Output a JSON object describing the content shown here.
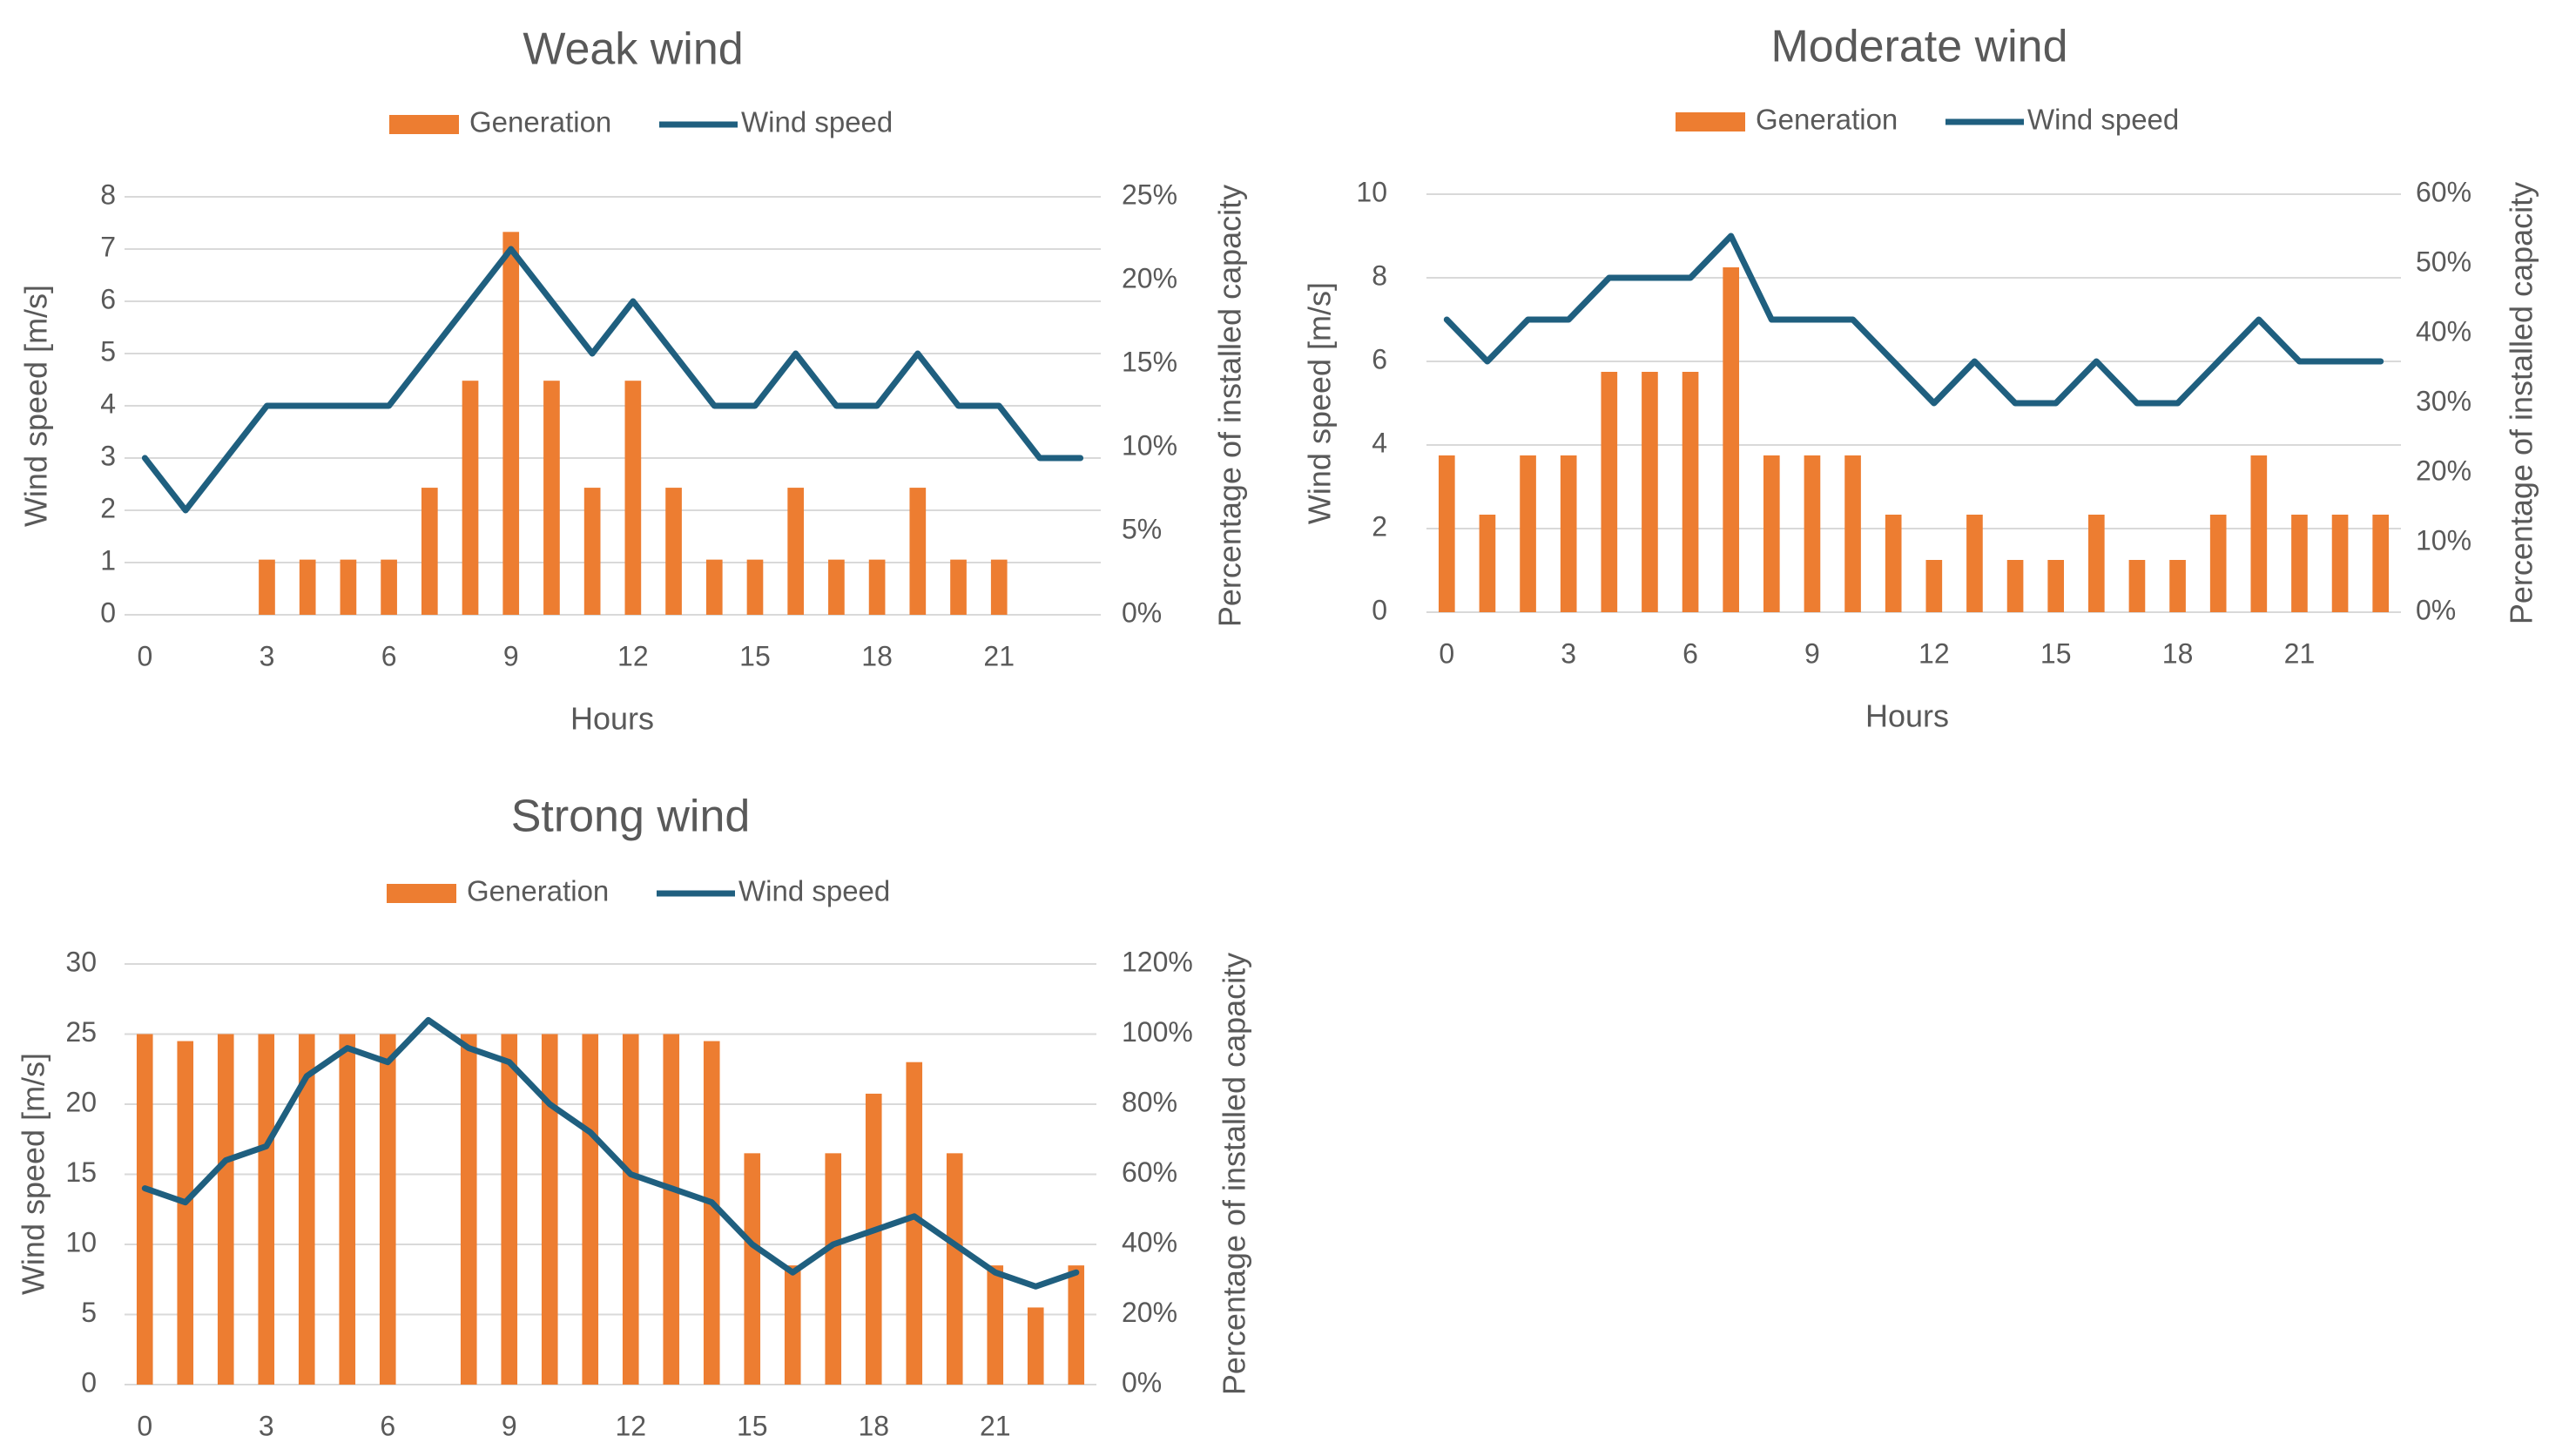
{
  "colors": {
    "generation": "#ED7D31",
    "wind_speed": "#1F5F7F",
    "gridline": "#D9D9D9",
    "text": "#595959"
  },
  "chart_data": [
    {
      "type": "bar",
      "title": "Weak wind",
      "legend": [
        "Generation",
        "Wind speed"
      ],
      "xlabel": "Hours",
      "ylabel": "Wind speed [m/s]",
      "y2label": "Percentage of installed capacity",
      "x": [
        0,
        1,
        2,
        3,
        4,
        5,
        6,
        7,
        8,
        9,
        10,
        11,
        12,
        13,
        14,
        15,
        16,
        17,
        18,
        19,
        20,
        21,
        22,
        23
      ],
      "xticks": [
        "0",
        "3",
        "6",
        "9",
        "12",
        "15",
        "18",
        "21"
      ],
      "ylim": [
        0,
        8
      ],
      "yticks": [
        "0",
        "1",
        "2",
        "3",
        "4",
        "5",
        "6",
        "7",
        "8"
      ],
      "y2lim": [
        0,
        25
      ],
      "y2ticks": [
        "0%",
        "5%",
        "10%",
        "15%",
        "20%",
        "25%"
      ],
      "series": [
        {
          "name": "Generation",
          "type": "bar",
          "axis": "right",
          "values": [
            0,
            0,
            0,
            3.3,
            3.3,
            3.3,
            3.3,
            7.6,
            14,
            22.9,
            14,
            7.6,
            14,
            7.6,
            3.3,
            3.3,
            7.6,
            3.3,
            3.3,
            7.6,
            3.3,
            3.3,
            0,
            0
          ]
        },
        {
          "name": "Wind speed",
          "type": "line",
          "axis": "left",
          "values": [
            3,
            2,
            3,
            4,
            4,
            4,
            4,
            5,
            6,
            7,
            6,
            5,
            6,
            5,
            4,
            4,
            5,
            4,
            4,
            5,
            4,
            4,
            3,
            3
          ]
        }
      ]
    },
    {
      "type": "bar",
      "title": "Moderate wind",
      "legend": [
        "Generation",
        "Wind speed"
      ],
      "xlabel": "Hours",
      "ylabel": "Wind speed [m/s]",
      "y2label": "Percentage of installed capacity",
      "x": [
        0,
        1,
        2,
        3,
        4,
        5,
        6,
        7,
        8,
        9,
        10,
        11,
        12,
        13,
        14,
        15,
        16,
        17,
        18,
        19,
        20,
        21,
        22,
        23
      ],
      "xticks": [
        "0",
        "3",
        "6",
        "9",
        "12",
        "15",
        "18",
        "21"
      ],
      "ylim": [
        0,
        10
      ],
      "yticks": [
        "0",
        "2",
        "4",
        "6",
        "8",
        "10"
      ],
      "y2lim": [
        0,
        60
      ],
      "y2ticks": [
        "0%",
        "10%",
        "20%",
        "30%",
        "40%",
        "50%",
        "60%"
      ],
      "series": [
        {
          "name": "Generation",
          "type": "bar",
          "axis": "right",
          "values": [
            22.5,
            14,
            22.5,
            22.5,
            34.5,
            34.5,
            34.5,
            49.5,
            22.5,
            22.5,
            22.5,
            14,
            7.5,
            14,
            7.5,
            7.5,
            14,
            7.5,
            7.5,
            14,
            22.5,
            14,
            14,
            14
          ]
        },
        {
          "name": "Wind speed",
          "type": "line",
          "axis": "left",
          "values": [
            7,
            6,
            7,
            7,
            8,
            8,
            8,
            9,
            7,
            7,
            7,
            6,
            5,
            6,
            5,
            5,
            6,
            5,
            5,
            6,
            7,
            6,
            6,
            6
          ]
        }
      ]
    },
    {
      "type": "bar",
      "title": "Strong wind",
      "legend": [
        "Generation",
        "Wind speed"
      ],
      "xlabel": "",
      "ylabel": "Wind speed [m/s]",
      "y2label": "Percentage of installed capacity",
      "x": [
        0,
        1,
        2,
        3,
        4,
        5,
        6,
        7,
        8,
        9,
        10,
        11,
        12,
        13,
        14,
        15,
        16,
        17,
        18,
        19,
        20,
        21,
        22,
        23
      ],
      "xticks": [
        "0",
        "3",
        "6",
        "9",
        "12",
        "15",
        "18",
        "21"
      ],
      "ylim": [
        0,
        30
      ],
      "yticks": [
        "0",
        "5",
        "10",
        "15",
        "20",
        "25",
        "30"
      ],
      "y2lim": [
        0,
        120
      ],
      "y2ticks": [
        "0%",
        "20%",
        "40%",
        "60%",
        "80%",
        "100%",
        "120%"
      ],
      "series": [
        {
          "name": "Generation",
          "type": "bar",
          "axis": "right",
          "values": [
            100,
            98,
            100,
            100,
            100,
            100,
            100,
            0,
            100,
            100,
            100,
            100,
            100,
            100,
            98,
            66,
            34,
            66,
            83,
            92,
            66,
            34,
            22,
            34
          ]
        },
        {
          "name": "Wind speed",
          "type": "line",
          "axis": "left",
          "values": [
            14,
            13,
            16,
            17,
            22,
            24,
            23,
            26,
            24,
            23,
            20,
            18,
            15,
            14,
            13,
            10,
            8,
            10,
            11,
            12,
            10,
            8,
            7,
            8
          ]
        }
      ]
    }
  ]
}
